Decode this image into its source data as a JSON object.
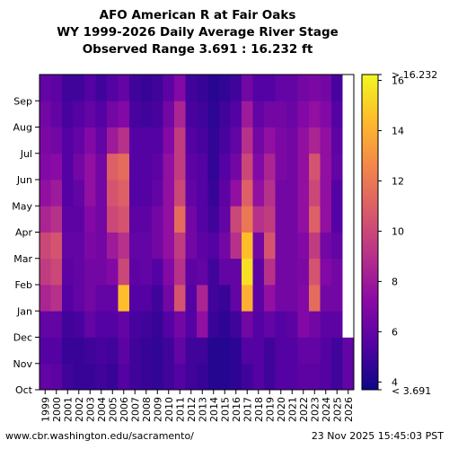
{
  "title_lines": [
    "AFO American R at Fair Oaks",
    "WY 1999-2026 Daily Average River Stage",
    "Observed Range 3.691 : 16.232 ft"
  ],
  "footer": {
    "source": "www.cbr.washington.edu/sacramento/",
    "timestamp": "23 Nov 2025 15:45:03 PST"
  },
  "colors": {
    "colormap": [
      "#0d0887",
      "#5302a3",
      "#8b0aa5",
      "#b83289",
      "#db5c68",
      "#f48849",
      "#febc2a",
      "#f0f921"
    ],
    "missing": "#ffffff"
  },
  "chart_data": {
    "type": "heatmap",
    "x_label": "",
    "y_label": "",
    "years": [
      "1999",
      "2000",
      "2001",
      "2002",
      "2003",
      "2004",
      "2005",
      "2006",
      "2007",
      "2008",
      "2009",
      "2010",
      "2011",
      "2012",
      "2013",
      "2014",
      "2015",
      "2016",
      "2017",
      "2018",
      "2019",
      "2020",
      "2021",
      "2022",
      "2023",
      "2024",
      "2025",
      "2026"
    ],
    "months": [
      "Oct",
      "Nov",
      "Dec",
      "Jan",
      "Feb",
      "Mar",
      "Apr",
      "May",
      "Jun",
      "Jul",
      "Aug",
      "Sep"
    ],
    "colorbar": {
      "min": 3.691,
      "max": 16.232,
      "ticks": [
        4,
        6,
        8,
        10,
        12,
        14,
        16
      ],
      "min_label": "< 3.691",
      "max_label": "> 16.232"
    },
    "monthly_stage_ft": [
      [
        6.0,
        5.5,
        6.0,
        8.5,
        9.5,
        10.0,
        8.5,
        7.5,
        7.0,
        6.8,
        6.5,
        6.0
      ],
      [
        5.8,
        5.5,
        6.0,
        9.0,
        10.0,
        10.5,
        9.0,
        8.0,
        7.2,
        6.5,
        6.0,
        5.8
      ],
      [
        5.0,
        4.8,
        5.0,
        5.5,
        5.8,
        6.0,
        5.8,
        5.5,
        5.5,
        5.5,
        5.2,
        5.0
      ],
      [
        4.8,
        4.8,
        5.2,
        6.0,
        6.0,
        6.0,
        5.8,
        6.0,
        6.5,
        6.0,
        5.5,
        5.0
      ],
      [
        4.8,
        5.0,
        6.0,
        6.5,
        6.5,
        6.8,
        7.0,
        7.5,
        7.5,
        7.0,
        6.0,
        5.5
      ],
      [
        5.0,
        5.2,
        5.5,
        6.0,
        6.5,
        6.5,
        6.5,
        6.5,
        6.5,
        6.0,
        5.5,
        5.0
      ],
      [
        4.8,
        5.0,
        5.5,
        6.0,
        7.0,
        8.0,
        10.0,
        10.5,
        11.0,
        8.0,
        6.5,
        5.5
      ],
      [
        5.5,
        5.8,
        6.0,
        14.5,
        10.0,
        9.0,
        10.5,
        11.0,
        11.5,
        9.0,
        7.0,
        6.0
      ],
      [
        5.0,
        5.0,
        5.2,
        5.5,
        5.8,
        6.0,
        5.8,
        5.5,
        5.5,
        5.5,
        5.2,
        5.0
      ],
      [
        4.8,
        4.8,
        5.0,
        5.5,
        6.0,
        6.0,
        5.8,
        5.5,
        5.5,
        5.5,
        5.0,
        4.8
      ],
      [
        4.6,
        4.6,
        4.8,
        5.0,
        5.5,
        6.5,
        6.5,
        6.0,
        5.8,
        5.5,
        5.2,
        5.0
      ],
      [
        5.0,
        5.0,
        5.5,
        6.5,
        7.0,
        7.5,
        7.5,
        7.5,
        7.5,
        7.0,
        6.5,
        5.8
      ],
      [
        5.5,
        6.0,
        6.5,
        10.5,
        9.0,
        9.5,
        11.5,
        10.0,
        9.5,
        9.5,
        8.5,
        7.0
      ],
      [
        5.0,
        5.0,
        5.5,
        5.5,
        5.8,
        6.5,
        6.5,
        6.0,
        5.8,
        5.5,
        5.2,
        5.0
      ],
      [
        4.8,
        5.0,
        7.5,
        8.5,
        6.0,
        5.8,
        5.5,
        5.5,
        5.5,
        5.2,
        5.0,
        4.8
      ],
      [
        4.3,
        4.3,
        4.8,
        5.0,
        5.0,
        5.5,
        5.0,
        4.8,
        4.6,
        4.6,
        4.5,
        4.4
      ],
      [
        4.3,
        4.3,
        4.5,
        4.8,
        6.0,
        6.5,
        6.0,
        5.8,
        5.5,
        5.2,
        5.0,
        4.6
      ],
      [
        4.5,
        4.5,
        5.0,
        6.0,
        6.0,
        9.0,
        10.0,
        7.5,
        6.5,
        6.0,
        5.5,
        5.0
      ],
      [
        5.0,
        5.5,
        6.5,
        14.0,
        15.5,
        14.5,
        12.0,
        11.0,
        10.0,
        9.0,
        8.0,
        6.5
      ],
      [
        5.5,
        5.5,
        5.5,
        5.8,
        5.8,
        6.5,
        9.0,
        7.5,
        7.0,
        6.5,
        6.0,
        5.5
      ],
      [
        5.0,
        5.0,
        6.0,
        7.5,
        9.0,
        10.5,
        9.5,
        9.0,
        8.5,
        7.5,
        6.5,
        5.5
      ],
      [
        5.5,
        5.5,
        5.5,
        6.5,
        6.5,
        6.5,
        6.5,
        6.5,
        6.8,
        6.8,
        6.5,
        6.0
      ],
      [
        5.5,
        5.5,
        5.8,
        6.5,
        6.5,
        6.5,
        6.5,
        6.5,
        6.5,
        6.5,
        6.2,
        6.0
      ],
      [
        5.8,
        6.0,
        7.0,
        7.0,
        6.8,
        7.0,
        7.5,
        7.5,
        7.5,
        7.5,
        7.0,
        6.5
      ],
      [
        5.8,
        6.0,
        6.5,
        11.5,
        10.5,
        9.5,
        11.0,
        10.0,
        10.5,
        8.5,
        7.5,
        6.8
      ],
      [
        5.5,
        5.5,
        5.8,
        6.5,
        7.0,
        6.5,
        7.5,
        7.5,
        7.5,
        7.5,
        7.0,
        6.5
      ],
      [
        5.0,
        5.0,
        5.8,
        6.5,
        6.5,
        6.0,
        5.5,
        5.5,
        6.0,
        5.8,
        5.5,
        5.2
      ],
      [
        6.0,
        6.0,
        null,
        null,
        null,
        null,
        null,
        null,
        null,
        null,
        null,
        null
      ]
    ]
  }
}
